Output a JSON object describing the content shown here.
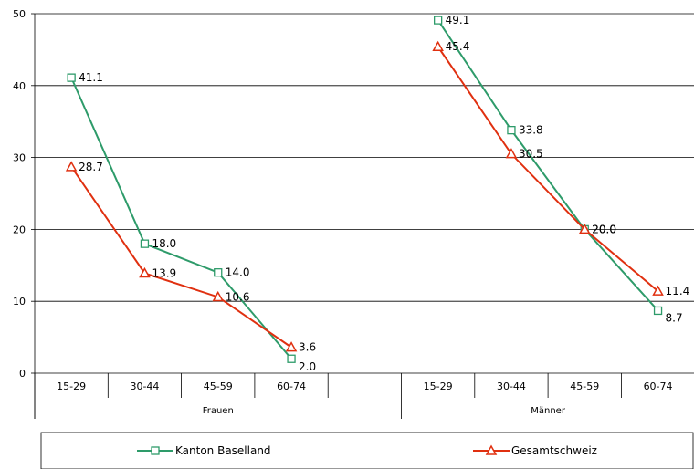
{
  "chart_data": {
    "type": "line",
    "groups": [
      {
        "name": "Frauen",
        "categories": [
          "15-29",
          "30-44",
          "45-59",
          "60-74"
        ]
      },
      {
        "name": "Männer",
        "categories": [
          "15-29",
          "30-44",
          "45-59",
          "60-74"
        ]
      }
    ],
    "series": [
      {
        "name": "Kanton Baselland",
        "color": "#2e9b6a",
        "marker": "square",
        "frauen": [
          41.1,
          18.0,
          14.0,
          2.0
        ],
        "maenner": [
          49.1,
          33.8,
          20.0,
          8.7
        ],
        "frauen_labels": [
          "41.1",
          "18.0",
          "14.0",
          "2.0"
        ],
        "maenner_labels": [
          "49.1",
          "33.8",
          "20.0",
          "8.7"
        ]
      },
      {
        "name": "Gesamtschweiz",
        "color": "#e03010",
        "marker": "triangle",
        "frauen": [
          28.7,
          13.9,
          10.6,
          3.6
        ],
        "maenner": [
          45.4,
          30.5,
          20.0,
          11.4
        ],
        "frauen_labels": [
          "28.7",
          "13.9",
          "10.6",
          "3.6"
        ],
        "maenner_labels": [
          "45.4",
          "30.5",
          "20.0",
          "11.4"
        ]
      }
    ],
    "y_ticks": [
      "0",
      "10",
      "20",
      "30",
      "40",
      "50"
    ],
    "ylim": [
      0,
      50
    ],
    "grid": true,
    "legend_position": "bottom"
  }
}
